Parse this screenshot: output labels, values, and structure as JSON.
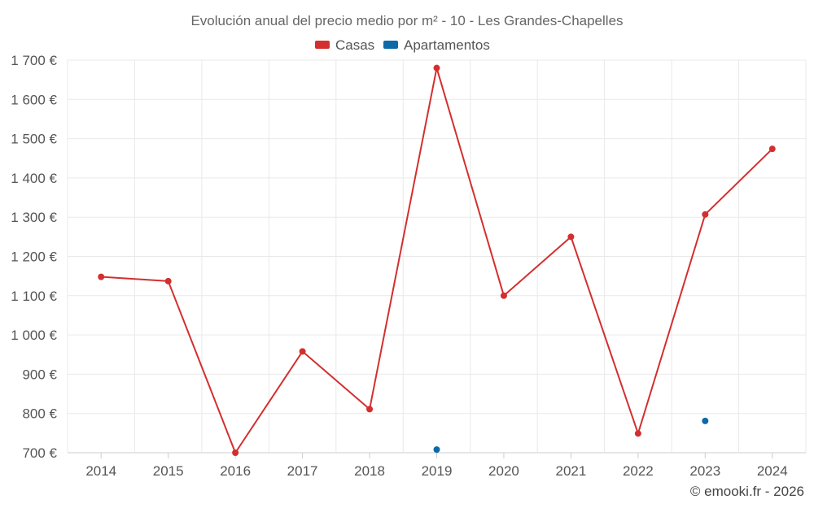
{
  "chart_data": {
    "type": "line",
    "title": "Evolución anual del precio medio por m² - 10 - Les Grandes-Chapelles",
    "categories": [
      "2014",
      "2015",
      "2016",
      "2017",
      "2018",
      "2019",
      "2020",
      "2021",
      "2022",
      "2023",
      "2024"
    ],
    "y_ticks": [
      "700 €",
      "800 €",
      "900 €",
      "1 000 €",
      "1 100 €",
      "1 200 €",
      "1 300 €",
      "1 400 €",
      "1 500 €",
      "1 600 €",
      "1 700 €"
    ],
    "ylim": [
      700,
      1700
    ],
    "grid": true,
    "legend_position": "top-center",
    "series": [
      {
        "name": "Casas",
        "color": "#d32f2f",
        "style": "line",
        "values": [
          1148,
          1137,
          700,
          958,
          811,
          1680,
          1100,
          1250,
          749,
          1307,
          1474
        ]
      },
      {
        "name": "Apartamentos",
        "color": "#0d6aa8",
        "style": "points",
        "values": [
          null,
          null,
          null,
          null,
          null,
          708,
          null,
          null,
          null,
          781,
          null
        ]
      }
    ],
    "credit": "© emooki.fr - 2026"
  }
}
